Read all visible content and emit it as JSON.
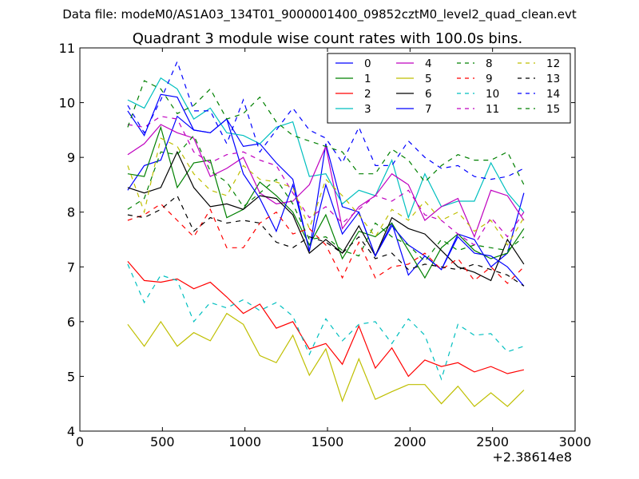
{
  "chart_data": {
    "type": "line",
    "supertitle": "Data file: modeM0/AS1A03_134T01_9000001400_09852cztM0_level2_quad_clean.evt",
    "title": "Quadrant 3 module wise count rates with 100.0s bins.",
    "xlabel": "",
    "ylabel": "",
    "x_offset_label": "+2.38614e8",
    "xlim": [
      0,
      3000
    ],
    "ylim": [
      4,
      11
    ],
    "xticks": [
      0,
      500,
      1000,
      1500,
      2000,
      2500,
      3000
    ],
    "yticks": [
      4,
      5,
      6,
      7,
      8,
      9,
      10,
      11
    ],
    "xtick_labels": [
      "0",
      "500",
      "1000",
      "1500",
      "2000",
      "2500",
      "3000"
    ],
    "ytick_labels": [
      "4",
      "5",
      "6",
      "7",
      "8",
      "9",
      "10",
      "11"
    ],
    "legend_position": "top-right",
    "x": [
      290,
      390,
      490,
      590,
      690,
      790,
      890,
      990,
      1090,
      1190,
      1290,
      1390,
      1490,
      1590,
      1690,
      1790,
      1890,
      1990,
      2090,
      2190,
      2290,
      2390,
      2490,
      2590,
      2690
    ],
    "series": [
      {
        "name": "0",
        "color": "#0000ff",
        "dash": "solid",
        "values": [
          8.4,
          8.85,
          8.95,
          9.75,
          9.5,
          9.45,
          9.7,
          9.2,
          9.25,
          8.9,
          8.6,
          7.28,
          9.25,
          8.1,
          8.0,
          7.2,
          7.8,
          6.85,
          7.2,
          6.95,
          7.6,
          7.5,
          7.0,
          7.25,
          8.35
        ]
      },
      {
        "name": "1",
        "color": "#008000",
        "dash": "solid",
        "values": [
          8.7,
          8.65,
          9.55,
          8.45,
          8.9,
          8.95,
          7.9,
          8.05,
          8.55,
          8.3,
          8.0,
          7.4,
          7.95,
          7.15,
          7.65,
          7.55,
          7.8,
          7.3,
          6.8,
          7.35,
          7.6,
          7.3,
          7.15,
          7.25,
          7.7
        ]
      },
      {
        "name": "2",
        "color": "#ff0000",
        "dash": "solid",
        "values": [
          7.1,
          6.75,
          6.72,
          6.78,
          6.6,
          6.72,
          6.45,
          6.15,
          6.32,
          5.88,
          6.0,
          5.5,
          5.6,
          5.22,
          5.92,
          5.15,
          5.52,
          5.0,
          5.3,
          5.18,
          5.25,
          5.08,
          5.18,
          5.05,
          5.12
        ]
      },
      {
        "name": "3",
        "color": "#00bfbf",
        "dash": "solid",
        "values": [
          10.05,
          9.9,
          10.45,
          10.25,
          9.7,
          9.9,
          9.45,
          9.4,
          9.25,
          9.55,
          9.65,
          8.65,
          8.7,
          8.15,
          8.4,
          8.3,
          8.95,
          7.9,
          8.7,
          8.1,
          8.2,
          8.2,
          8.9,
          8.35,
          8.0
        ]
      },
      {
        "name": "4",
        "color": "#bf00bf",
        "dash": "solid",
        "values": [
          9.05,
          9.25,
          9.6,
          9.45,
          9.35,
          8.65,
          8.8,
          9.0,
          8.35,
          8.15,
          8.2,
          8.5,
          9.2,
          7.7,
          8.1,
          8.3,
          8.7,
          8.5,
          7.85,
          8.1,
          8.25,
          7.55,
          8.4,
          8.3,
          7.85
        ]
      },
      {
        "name": "5",
        "color": "#bfbf00",
        "dash": "solid",
        "values": [
          5.95,
          5.55,
          6.0,
          5.55,
          5.8,
          5.65,
          6.15,
          5.95,
          5.38,
          5.25,
          5.75,
          5.02,
          5.5,
          4.55,
          5.32,
          4.58,
          4.72,
          4.85,
          4.85,
          4.5,
          4.82,
          4.45,
          4.7,
          4.45,
          4.75
        ]
      },
      {
        "name": "6",
        "color": "#000000",
        "dash": "solid",
        "values": [
          8.45,
          8.35,
          8.45,
          9.1,
          8.45,
          8.1,
          8.15,
          8.05,
          8.3,
          8.25,
          7.95,
          7.25,
          7.5,
          7.25,
          7.75,
          7.2,
          7.9,
          7.7,
          7.6,
          7.3,
          7.0,
          6.9,
          6.75,
          7.5,
          7.05
        ]
      },
      {
        "name": "7",
        "color": "#0000ff",
        "dash": "solid",
        "values": [
          9.85,
          9.4,
          10.15,
          10.1,
          9.5,
          9.45,
          9.7,
          8.7,
          8.25,
          7.65,
          8.5,
          7.3,
          8.5,
          7.6,
          8.0,
          7.2,
          7.75,
          7.4,
          7.2,
          6.95,
          7.55,
          7.25,
          7.2,
          7.0,
          6.65
        ]
      },
      {
        "name": "8",
        "color": "#008000",
        "dash": "dashed",
        "values": [
          8.05,
          8.25,
          9.1,
          9.05,
          9.4,
          8.75,
          8.55,
          8.1,
          8.35,
          8.6,
          8.15,
          7.5,
          7.55,
          7.3,
          7.2,
          7.8,
          7.55,
          7.4,
          7.1,
          7.5,
          7.3,
          7.4,
          7.35,
          7.3,
          7.55
        ]
      },
      {
        "name": "9",
        "color": "#ff0000",
        "dash": "dashed",
        "values": [
          7.85,
          7.95,
          8.15,
          7.85,
          7.55,
          8.05,
          7.35,
          7.35,
          7.8,
          8.0,
          7.6,
          7.7,
          7.4,
          6.8,
          7.45,
          6.8,
          7.0,
          7.05,
          7.25,
          6.95,
          7.15,
          6.75,
          7.0,
          6.7,
          7.0
        ]
      },
      {
        "name": "10",
        "color": "#00bfbf",
        "dash": "dashed",
        "values": [
          7.05,
          6.35,
          6.85,
          6.75,
          6.0,
          6.35,
          6.25,
          6.4,
          6.2,
          6.35,
          6.1,
          5.4,
          6.05,
          5.65,
          5.95,
          6.0,
          5.6,
          6.05,
          5.75,
          4.95,
          5.95,
          5.75,
          5.78,
          5.45,
          5.55
        ]
      },
      {
        "name": "11",
        "color": "#bf00bf",
        "dash": "dashed",
        "values": [
          9.6,
          9.55,
          9.75,
          9.7,
          9.1,
          8.9,
          9.05,
          9.1,
          8.95,
          8.85,
          8.35,
          7.9,
          8.1,
          7.8,
          8.05,
          8.3,
          8.2,
          8.4,
          7.95,
          7.85,
          7.6,
          7.4,
          7.9,
          7.55,
          8.0
        ]
      },
      {
        "name": "12",
        "color": "#bfbf00",
        "dash": "dashed",
        "values": [
          8.85,
          8.0,
          9.35,
          9.2,
          8.7,
          8.4,
          8.3,
          8.85,
          8.6,
          8.55,
          8.45,
          7.7,
          8.6,
          8.3,
          7.95,
          7.55,
          8.05,
          7.85,
          8.2,
          7.85,
          8.0,
          7.65,
          7.85,
          7.4,
          7.9
        ]
      },
      {
        "name": "13",
        "color": "#000000",
        "dash": "dashed",
        "values": [
          7.95,
          7.9,
          8.05,
          8.3,
          7.65,
          7.9,
          7.8,
          7.85,
          7.8,
          7.45,
          7.35,
          7.55,
          7.45,
          7.25,
          7.55,
          7.15,
          7.25,
          6.95,
          7.05,
          7.0,
          6.95,
          7.05,
          6.95,
          6.85,
          6.65
        ]
      },
      {
        "name": "14",
        "color": "#0000ff",
        "dash": "dashed",
        "values": [
          9.95,
          9.45,
          10.05,
          10.75,
          9.85,
          9.85,
          9.25,
          10.05,
          9.1,
          9.5,
          9.9,
          9.5,
          9.35,
          8.9,
          9.55,
          8.85,
          8.85,
          9.3,
          9.0,
          8.8,
          8.85,
          8.65,
          8.6,
          8.65,
          8.8
        ]
      },
      {
        "name": "15",
        "color": "#008000",
        "dash": "dashed",
        "values": [
          9.55,
          10.4,
          10.25,
          9.8,
          9.95,
          10.25,
          9.7,
          9.8,
          10.1,
          9.65,
          9.4,
          9.3,
          9.2,
          9.1,
          8.7,
          8.7,
          9.15,
          8.95,
          8.55,
          8.85,
          9.05,
          8.95,
          8.95,
          9.1,
          8.5
        ]
      }
    ]
  }
}
